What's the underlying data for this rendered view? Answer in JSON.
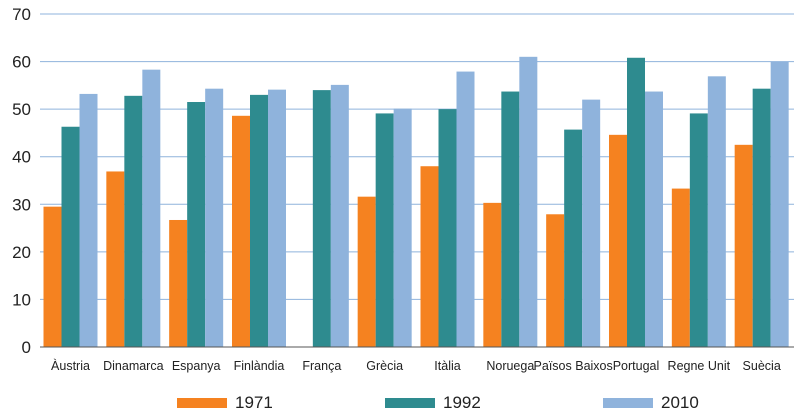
{
  "chart_data": {
    "type": "bar",
    "title": "",
    "xlabel": "",
    "ylabel": "",
    "ylim": [
      0,
      70
    ],
    "yticks": [
      0,
      10,
      20,
      30,
      40,
      50,
      60,
      70
    ],
    "grid": true,
    "legend_position": "bottom",
    "categories": [
      "Àustria",
      "Dinamarca",
      "Espanya",
      "Finlàndia",
      "França",
      "Grècia",
      "Itàlia",
      "Noruega",
      "Països Baixos",
      "Portugal",
      "Regne Unit",
      "Suècia"
    ],
    "series": [
      {
        "name": "1971",
        "color": "#f58220",
        "values": [
          29.5,
          36.9,
          26.7,
          48.6,
          null,
          31.6,
          38.0,
          30.3,
          27.9,
          44.6,
          33.3,
          42.5
        ]
      },
      {
        "name": "1992",
        "color": "#2e8b8f",
        "values": [
          46.3,
          52.8,
          51.5,
          53.0,
          54.0,
          49.1,
          50.0,
          53.7,
          45.7,
          60.8,
          49.1,
          54.3
        ]
      },
      {
        "name": "2010",
        "color": "#8fb3dc",
        "values": [
          53.2,
          58.3,
          54.3,
          54.1,
          55.1,
          50.1,
          57.9,
          61.0,
          52.0,
          53.7,
          56.9,
          60.0
        ]
      }
    ]
  }
}
